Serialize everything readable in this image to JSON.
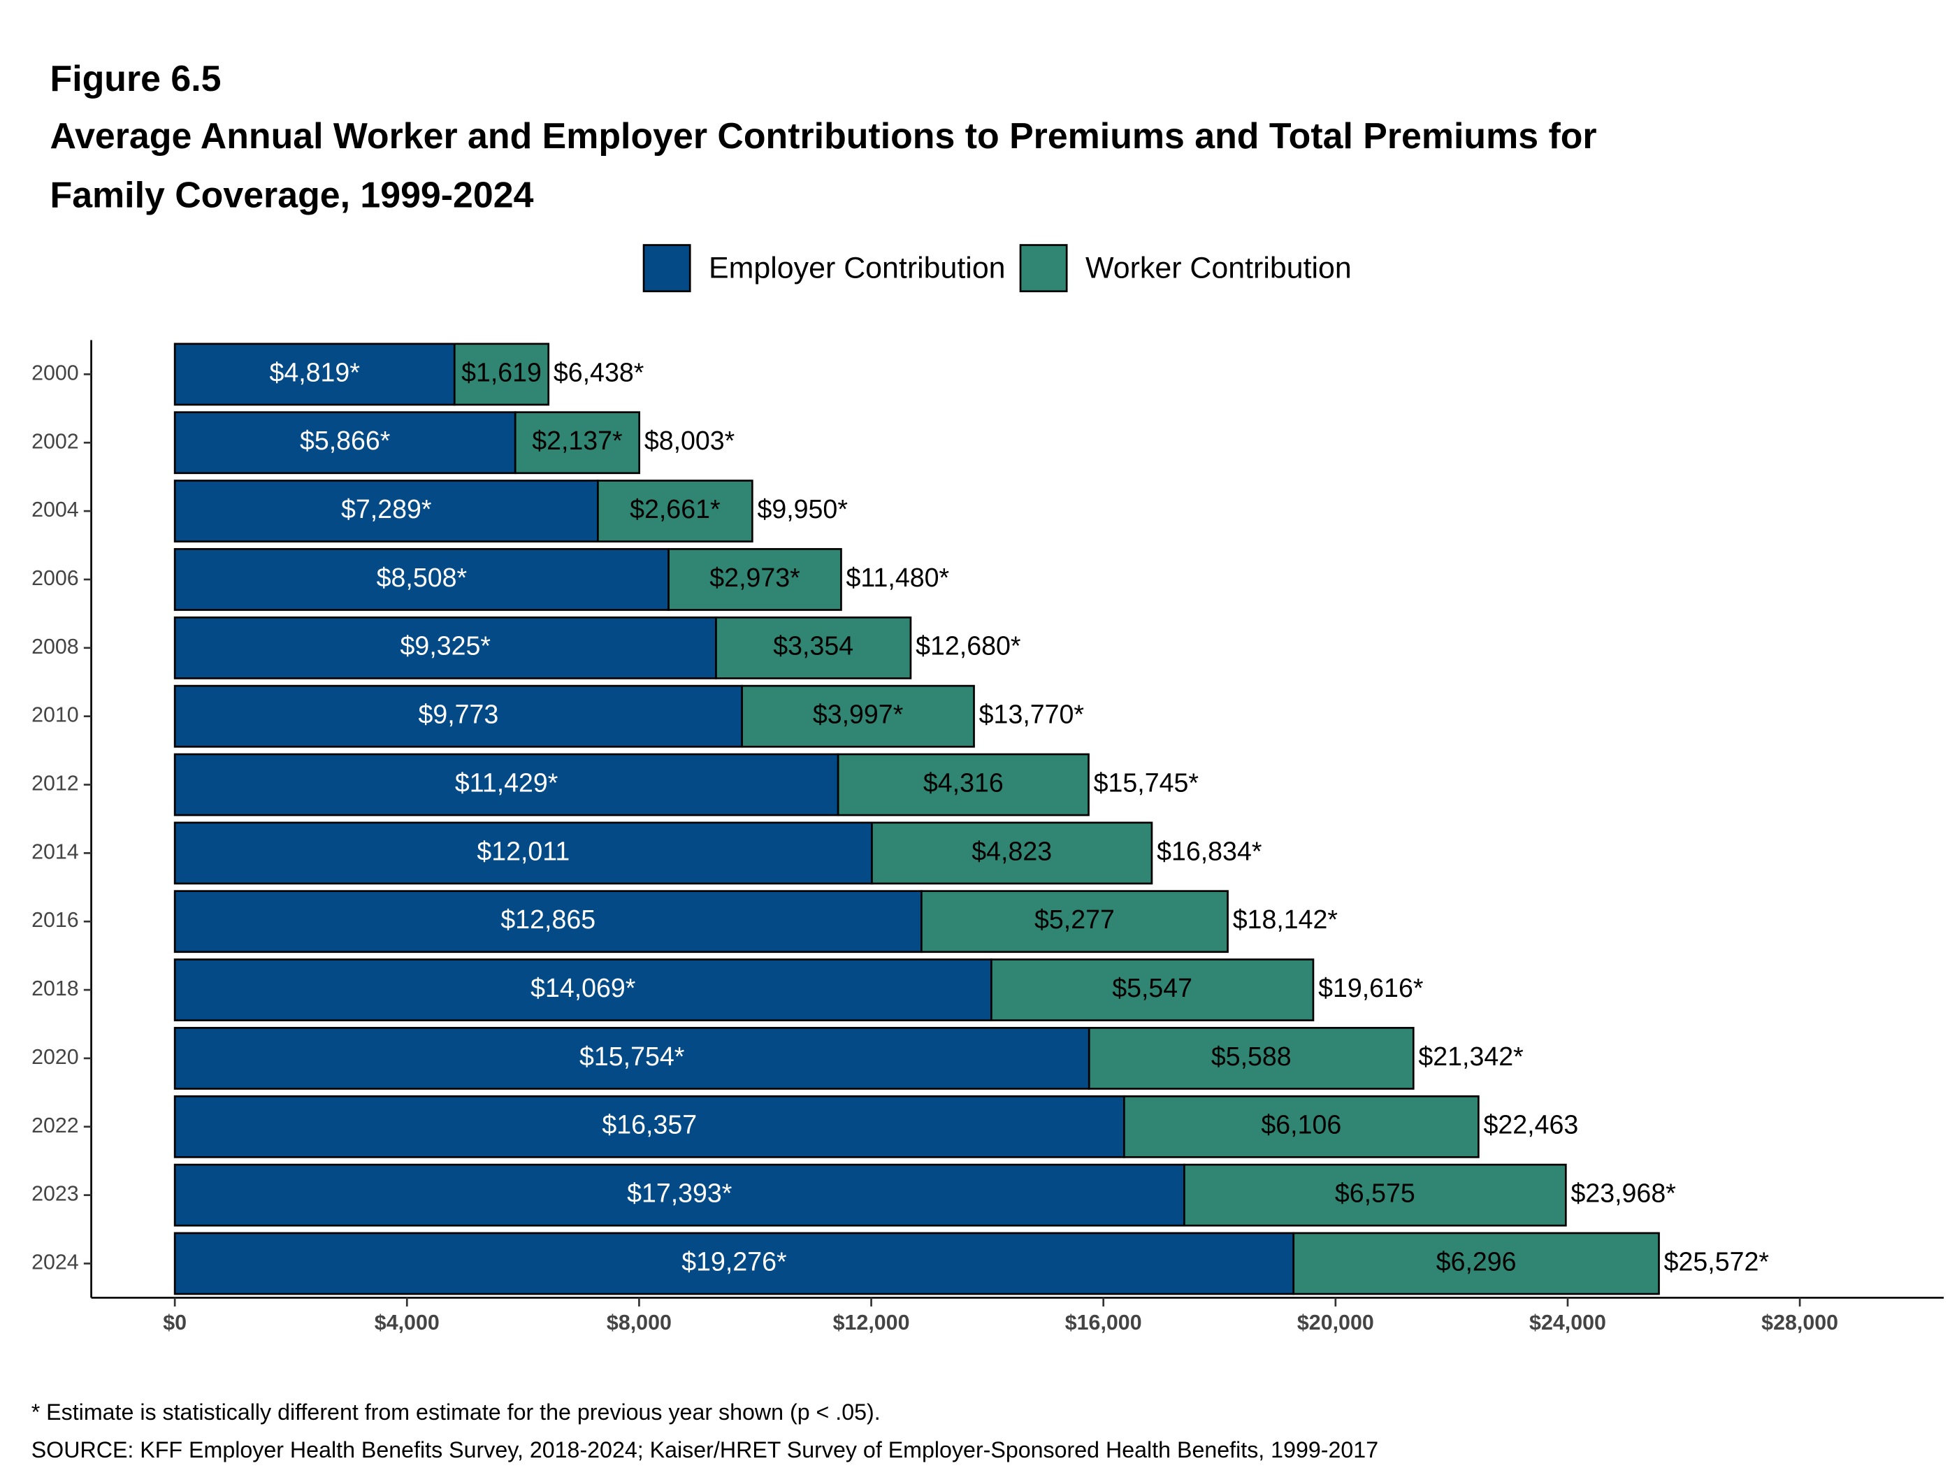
{
  "chart_data": {
    "type": "stacked-barh",
    "figure_label": "Figure 6.5",
    "title": [
      "Average Annual Worker and Employer Contributions to Premiums and Total Premiums for",
      "Family Coverage, 1999-2024"
    ],
    "categories": [
      "2000",
      "2002",
      "2004",
      "2006",
      "2008",
      "2010",
      "2012",
      "2014",
      "2016",
      "2018",
      "2020",
      "2022",
      "2023",
      "2024"
    ],
    "series": [
      {
        "name": "Employer Contribution",
        "color": "#034a87",
        "values": [
          4819,
          5866,
          7289,
          8508,
          9325,
          9773,
          11429,
          12011,
          12865,
          14069,
          15754,
          16357,
          17393,
          19276
        ],
        "value_labels": [
          "$4,819*",
          "$5,866*",
          "$7,289*",
          "$8,508*",
          "$9,325*",
          "$9,773",
          "$11,429*",
          "$12,011",
          "$12,865",
          "$14,069*",
          "$15,754*",
          "$16,357",
          "$17,393*",
          "$19,276*"
        ]
      },
      {
        "name": "Worker Contribution",
        "color": "#308672",
        "values": [
          1619,
          2137,
          2661,
          2973,
          3354,
          3997,
          4316,
          4823,
          5277,
          5547,
          5588,
          6106,
          6575,
          6296
        ],
        "value_labels": [
          "$1,619",
          "$2,137*",
          "$2,661*",
          "$2,973*",
          "$3,354",
          "$3,997*",
          "$4,316",
          "$4,823",
          "$5,277",
          "$5,547",
          "$5,588",
          "$6,106",
          "$6,575",
          "$6,296"
        ]
      }
    ],
    "totals": [
      6438,
      8003,
      9950,
      11480,
      12680,
      13770,
      15745,
      16834,
      18142,
      19616,
      21342,
      22463,
      23968,
      25572
    ],
    "total_labels": [
      "$6,438*",
      "$8,003*",
      "$9,950*",
      "$11,480*",
      "$12,680*",
      "$13,770*",
      "$15,745*",
      "$16,834*",
      "$18,142*",
      "$19,616*",
      "$21,342*",
      "$22,463",
      "$23,968*",
      "$25,572*"
    ],
    "xlim": [
      -1440,
      30480
    ],
    "xticks": [
      {
        "value": 0,
        "label": "$0"
      },
      {
        "value": 4000,
        "label": "$4,000"
      },
      {
        "value": 8000,
        "label": "$8,000"
      },
      {
        "value": 12000,
        "label": "$12,000"
      },
      {
        "value": 16000,
        "label": "$16,000"
      },
      {
        "value": 20000,
        "label": "$20,000"
      },
      {
        "value": 24000,
        "label": "$24,000"
      },
      {
        "value": 28000,
        "label": "$28,000"
      }
    ],
    "legend": "top",
    "notes": [
      "* Estimate is statistically different from estimate for the previous year shown (p < .05).",
      "SOURCE: KFF Employer Health Benefits Survey, 2018-2024; Kaiser/HRET Survey of Employer-Sponsored Health Benefits, 1999-2017"
    ]
  }
}
